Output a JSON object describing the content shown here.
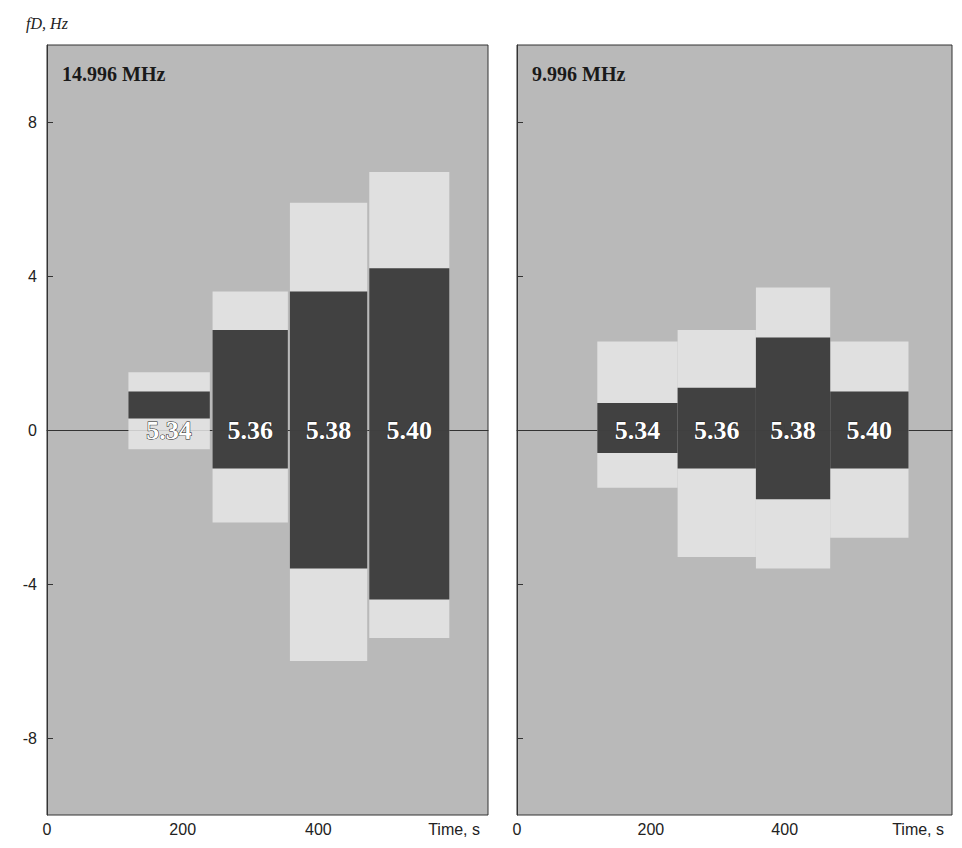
{
  "chart_data": [
    {
      "type": "spectrogram",
      "title": "14.996 MHz",
      "xlabel": "Time, s",
      "ylabel": "fD, Hz",
      "xlim": [
        0,
        650
      ],
      "xticks": [
        0,
        200,
        400
      ],
      "ylim": [
        -10,
        10
      ],
      "yticks": [
        -8,
        -4,
        0,
        4,
        8
      ],
      "tick_labels": true,
      "color": "#333333",
      "segments": [
        {
          "label": "5.34",
          "t_start": 120,
          "t_end": 240,
          "core": [
            0.3,
            1.0
          ],
          "spread": [
            -0.5,
            1.5
          ]
        },
        {
          "label": "5.36",
          "t_start": 244,
          "t_end": 355,
          "core": [
            -1.0,
            2.6
          ],
          "spread": [
            -2.4,
            3.6
          ]
        },
        {
          "label": "5.38",
          "t_start": 358,
          "t_end": 472,
          "core": [
            -3.6,
            3.6
          ],
          "spread": [
            -6.0,
            5.9
          ]
        },
        {
          "label": "5.40",
          "t_start": 475,
          "t_end": 593,
          "core": [
            -4.4,
            4.2
          ],
          "spread": [
            -5.4,
            6.7
          ]
        }
      ]
    },
    {
      "type": "spectrogram",
      "title": "9.996 MHz",
      "xlabel": "Time, s",
      "xlim": [
        0,
        650
      ],
      "xticks": [
        0,
        200,
        400
      ],
      "ylim": [
        -10,
        10
      ],
      "yticks": [
        -8,
        -4,
        0,
        4,
        8
      ],
      "tick_labels": "x",
      "color": "#333333",
      "segments": [
        {
          "label": "5.34",
          "t_start": 120,
          "t_end": 240,
          "core": [
            -0.6,
            0.7
          ],
          "spread": [
            -1.5,
            2.3
          ]
        },
        {
          "label": "5.36",
          "t_start": 240,
          "t_end": 357,
          "core": [
            -1.0,
            1.1
          ],
          "spread": [
            -3.3,
            2.6
          ]
        },
        {
          "label": "5.38",
          "t_start": 357,
          "t_end": 468,
          "core": [
            -1.8,
            2.4
          ],
          "spread": [
            -3.6,
            3.7
          ]
        },
        {
          "label": "5.40",
          "t_start": 468,
          "t_end": 585,
          "core": [
            -1.0,
            1.0
          ],
          "spread": [
            -2.8,
            2.3
          ]
        }
      ]
    }
  ]
}
